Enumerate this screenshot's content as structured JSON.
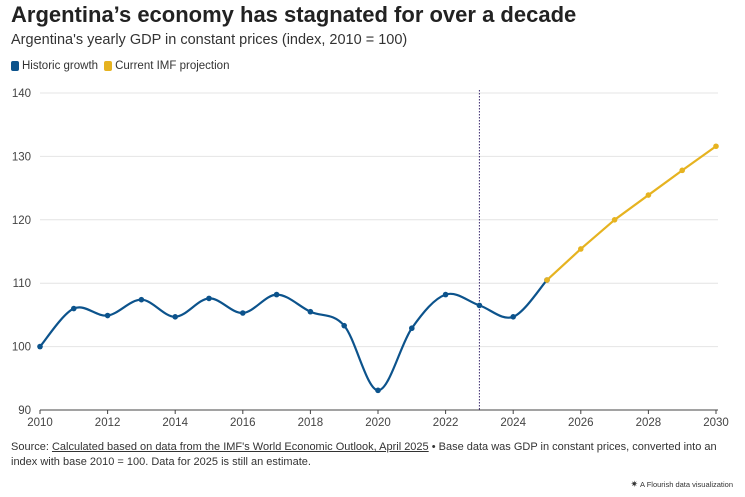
{
  "header": {
    "title": "Argentina’s economy has stagnated for over a decade",
    "subtitle": "Argentina's yearly GDP in constant prices (index, 2010 = 100)"
  },
  "colors": {
    "historic": "#0c538c",
    "projection": "#e6b320",
    "grid": "#e4e4e4",
    "axis": "#444444",
    "marker": "#3a2a6e"
  },
  "footer": {
    "source_prefix": "Source: ",
    "source_link": "Calculated based on data from the IMF's World Economic Outlook, April 2025",
    "source_rest": " • Base data was GDP in constant prices, converted into an index with base 2010 = 100. Data for 2025 is still an estimate.",
    "credit_icon": "flourish-icon",
    "credit": "A Flourish data visualization"
  },
  "chart_data": {
    "type": "line",
    "title": "Argentina’s economy has stagnated for over a decade",
    "subtitle": "Argentina's yearly GDP in constant prices (index, 2010 = 100)",
    "xlabel": "",
    "ylabel": "",
    "xlim": [
      2010,
      2030
    ],
    "ylim": [
      90,
      140
    ],
    "x_ticks": [
      2010,
      2012,
      2014,
      2016,
      2018,
      2020,
      2022,
      2024,
      2026,
      2028,
      2030
    ],
    "y_ticks": [
      90,
      100,
      110,
      120,
      130,
      140
    ],
    "grid": true,
    "legend_position": "top-left",
    "vertical_marker_x": 2023,
    "series": [
      {
        "name": "Historic growth",
        "x": [
          2010,
          2011,
          2012,
          2013,
          2014,
          2015,
          2016,
          2017,
          2018,
          2019,
          2020,
          2021,
          2022,
          2023,
          2024,
          2025
        ],
        "values": [
          100,
          106,
          104.9,
          107.4,
          104.7,
          107.6,
          105.3,
          108.2,
          105.5,
          103.3,
          93.1,
          102.9,
          108.2,
          106.5,
          104.7,
          110.5
        ]
      },
      {
        "name": "Current IMF projection",
        "x": [
          2025,
          2026,
          2027,
          2028,
          2029,
          2030
        ],
        "values": [
          110.5,
          115.4,
          120,
          123.9,
          127.8,
          131.6
        ]
      }
    ]
  }
}
